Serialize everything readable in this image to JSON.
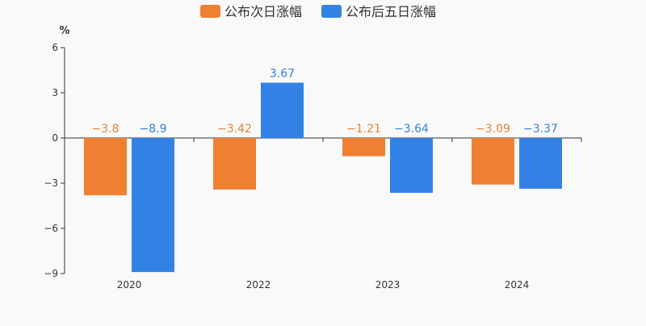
{
  "chart_data": {
    "type": "bar",
    "categories": [
      "2020",
      "2022",
      "2023",
      "2024"
    ],
    "series": [
      {
        "name": "公布次日涨幅",
        "values": [
          -3.8,
          -3.42,
          -1.21,
          -3.09
        ],
        "labels": [
          "−3.8",
          "−3.42",
          "−1.21",
          "−3.09"
        ],
        "color": "#ef8032"
      },
      {
        "name": "公布后五日涨幅",
        "values": [
          -8.9,
          3.67,
          -3.64,
          -3.37
        ],
        "labels": [
          "−8.9",
          "3.67",
          "−3.64",
          "−3.37"
        ],
        "color": "#3282e6"
      }
    ],
    "ylabel": "%",
    "ylim": [
      -9,
      6
    ],
    "yticks": [
      6,
      3,
      0,
      -3,
      -6,
      -9
    ],
    "ytick_labels": [
      "6",
      "3",
      "0",
      "−3",
      "−6",
      "−9"
    ],
    "legend": "top-center",
    "grid": false
  }
}
